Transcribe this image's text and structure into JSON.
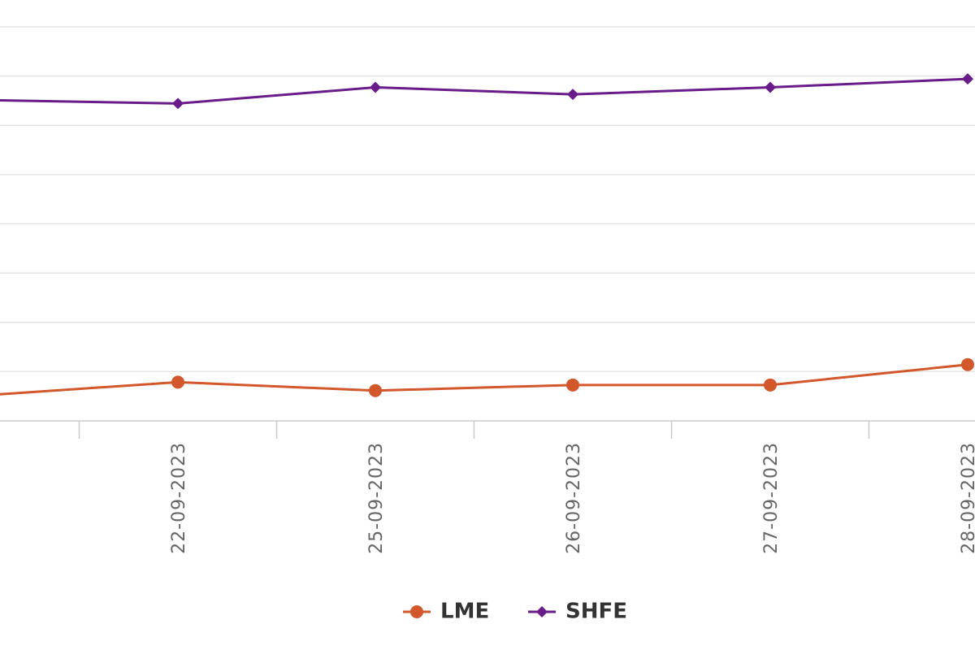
{
  "chart_data": {
    "type": "line",
    "categories": [
      "",
      "22-09-2023",
      "25-09-2023",
      "26-09-2023",
      "27-09-2023",
      "28-09-2023"
    ],
    "series": [
      {
        "name": "LME",
        "color": "#d2572b",
        "marker": "circle",
        "values": [
          18.0,
          27.5,
          21.5,
          25.5,
          25.5,
          40.0
        ]
      },
      {
        "name": "SHFE",
        "color": "#6a1b8a",
        "marker": "diamond",
        "values": [
          228.0,
          225.5,
          237.0,
          232.0,
          237.0,
          243.0
        ]
      }
    ],
    "ylim": [
      0,
      280
    ],
    "grid": true,
    "legend_position": "bottom-center",
    "xlabel": "",
    "ylabel": "",
    "title": ""
  }
}
